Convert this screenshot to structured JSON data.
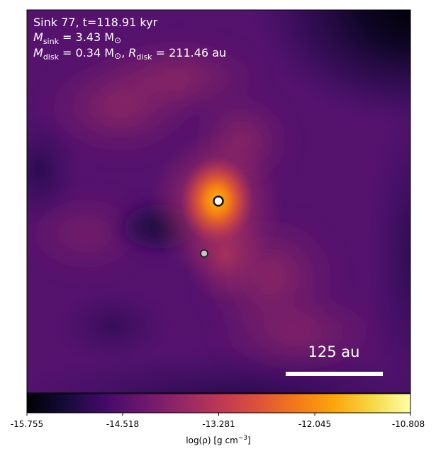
{
  "annotations": {
    "line1": "Sink 77, t=118.91 kyr",
    "line2_sym": "M",
    "line2_sub": "sink",
    "line2_rest": " = 3.43 M",
    "line2_sun": "⊙",
    "line3_sym": "M",
    "line3_sub": "disk",
    "line3_mid": " = 0.34 M",
    "line3_sun": "⊙",
    "line3_sep": ", ",
    "line3_sym2": "R",
    "line3_sub2": "disk",
    "line3_rest": " = 211.46 au"
  },
  "scale_bar": {
    "label": "125 au"
  },
  "colorbar": {
    "ticks": [
      "-15.755",
      "-14.518",
      "-13.281",
      "-12.045",
      "-10.808"
    ],
    "label_pre": "log(ρ) [g cm",
    "label_sup": "−3",
    "label_post": "]",
    "colormap": "inferno"
  },
  "sinks": [
    {
      "name": "primary-sink"
    },
    {
      "name": "secondary-sink"
    }
  ]
}
